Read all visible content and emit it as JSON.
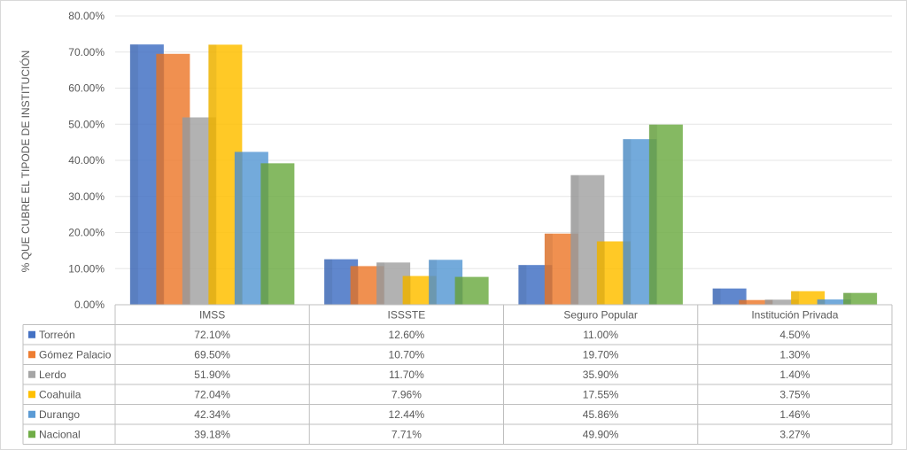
{
  "chart_data": {
    "type": "bar",
    "title": "",
    "xlabel": "",
    "ylabel": "% QUE CUBRE EL TIPODE DE INSTITUCIÓN",
    "ylim": [
      0,
      80
    ],
    "y_tick_labels": [
      "0.00%",
      "10.00%",
      "20.00%",
      "30.00%",
      "40.00%",
      "50.00%",
      "60.00%",
      "70.00%",
      "80.00%"
    ],
    "grid": true,
    "legend": "data-table",
    "categories": [
      "IMSS",
      "ISSSTE",
      "Seguro Popular",
      "Institución Privada"
    ],
    "series": [
      {
        "name": "Torreón",
        "color": "#4472c4",
        "values": [
          72.1,
          12.6,
          11.0,
          4.5
        ],
        "labels": [
          "72.10%",
          "12.60%",
          "11.00%",
          "4.50%"
        ]
      },
      {
        "name": "Gómez Palacio",
        "color": "#ed7d31",
        "values": [
          69.5,
          10.7,
          19.7,
          1.3
        ],
        "labels": [
          "69.50%",
          "10.70%",
          "19.70%",
          "1.30%"
        ]
      },
      {
        "name": "Lerdo",
        "color": "#a5a5a5",
        "values": [
          51.9,
          11.7,
          35.9,
          1.4
        ],
        "labels": [
          "51.90%",
          "11.70%",
          "35.90%",
          "1.40%"
        ]
      },
      {
        "name": "Coahuila",
        "color": "#ffc000",
        "values": [
          72.04,
          7.96,
          17.55,
          3.75
        ],
        "labels": [
          "72.04%",
          "7.96%",
          "17.55%",
          "3.75%"
        ]
      },
      {
        "name": "Durango",
        "color": "#5b9bd5",
        "values": [
          42.34,
          12.44,
          45.86,
          1.46
        ],
        "labels": [
          "42.34%",
          "12.44%",
          "45.86%",
          "1.46%"
        ]
      },
      {
        "name": "Nacional",
        "color": "#70ad47",
        "values": [
          39.18,
          7.71,
          49.9,
          3.27
        ],
        "labels": [
          "39.18%",
          "7.71%",
          "49.90%",
          "3.27%"
        ]
      }
    ]
  }
}
